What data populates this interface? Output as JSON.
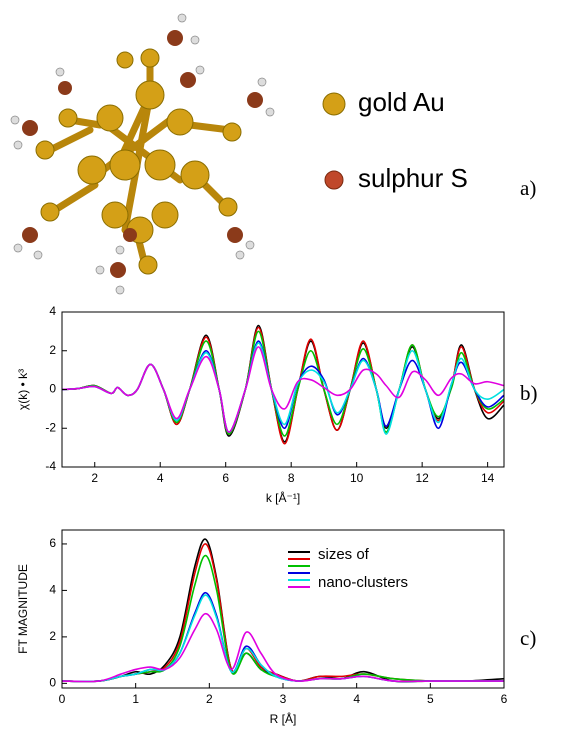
{
  "figure": {
    "panel_labels": [
      "a)",
      "b)",
      "c)"
    ],
    "molecule_legend": [
      "gold Au",
      "sulphur S"
    ]
  },
  "chart_data": [
    {
      "type": "line",
      "xlabel": "k [Å⁻¹]",
      "ylabel": "χ(k) • k³",
      "xlim": [
        1,
        14.5
      ],
      "ylim": [
        -4,
        4
      ],
      "xticks": [
        2,
        4,
        6,
        8,
        10,
        12,
        14
      ],
      "yticks": [
        -4,
        -2,
        0,
        2,
        4
      ],
      "x": [
        1,
        1.5,
        2,
        2.5,
        2.7,
        3,
        3.3,
        3.7,
        4.1,
        4.5,
        4.9,
        5.4,
        5.8,
        6.1,
        6.6,
        7.0,
        7.4,
        7.8,
        8.2,
        8.6,
        9.0,
        9.4,
        9.8,
        10.2,
        10.6,
        10.9,
        11.3,
        11.7,
        12.1,
        12.5,
        12.9,
        13.2,
        13.6,
        14.0,
        14.5
      ],
      "series": [
        {
          "color": "#000000",
          "values": [
            0,
            0.05,
            0.2,
            -0.2,
            0.1,
            -0.3,
            0,
            1.3,
            0,
            -1.8,
            0,
            2.8,
            0,
            -2.4,
            0,
            3.3,
            0,
            -2.7,
            0,
            2.5,
            0,
            -2.1,
            0,
            2.4,
            0,
            -2.0,
            0,
            2.2,
            0,
            -1.5,
            0.2,
            2.3,
            0,
            -1.5,
            -0.8
          ]
        },
        {
          "color": "#e00000",
          "values": [
            0,
            0.05,
            0.2,
            -0.2,
            0.1,
            -0.3,
            0,
            1.3,
            0,
            -1.8,
            0,
            2.7,
            0,
            -2.3,
            0,
            3.2,
            0,
            -2.8,
            0,
            2.6,
            0,
            -2.1,
            0,
            2.5,
            0,
            -1.9,
            0,
            2.3,
            0,
            -1.6,
            0.2,
            2.2,
            0,
            -1.2,
            -0.6
          ]
        },
        {
          "color": "#00c000",
          "values": [
            0,
            0.05,
            0.2,
            -0.2,
            0.1,
            -0.3,
            0,
            1.3,
            0,
            -1.7,
            0,
            2.5,
            0,
            -2.3,
            0,
            3.0,
            0,
            -2.4,
            0,
            2.0,
            0,
            -1.8,
            0,
            2.1,
            0,
            -2.2,
            0,
            2.3,
            0,
            -1.4,
            0.1,
            1.9,
            0,
            -1.0,
            -0.5
          ]
        },
        {
          "color": "#0000e0",
          "values": [
            0,
            0.05,
            0.15,
            -0.2,
            0.1,
            -0.3,
            0,
            1.3,
            0,
            -1.6,
            0,
            2.0,
            0,
            -2.2,
            0,
            2.5,
            0,
            -2.0,
            0.3,
            1.2,
            0.5,
            -1.3,
            0,
            1.6,
            0,
            -1.9,
            0,
            1.5,
            0,
            -2.0,
            0.3,
            1.4,
            0,
            -0.9,
            -0.3
          ]
        },
        {
          "color": "#00e0e0",
          "values": [
            0,
            0.05,
            0.15,
            -0.2,
            0.1,
            -0.3,
            0,
            1.3,
            0,
            -1.6,
            0,
            1.9,
            0,
            -2.2,
            0,
            2.4,
            0,
            -1.8,
            0.3,
            1.0,
            0.4,
            -1.2,
            0,
            1.5,
            0,
            -2.3,
            0,
            2.0,
            0,
            -1.7,
            0.3,
            1.6,
            0,
            -0.5,
            0
          ]
        },
        {
          "color": "#e000e0",
          "values": [
            0,
            0.05,
            0.15,
            -0.2,
            0.1,
            -0.3,
            0,
            1.3,
            0,
            -1.5,
            0,
            1.7,
            0,
            -2.2,
            0,
            2.2,
            0,
            -1.0,
            0.4,
            0.5,
            0.1,
            -0.3,
            0,
            1.0,
            0.8,
            0.2,
            -0.4,
            0.9,
            0.5,
            -0.3,
            0.6,
            0.8,
            0.3,
            0.4,
            0.2
          ]
        }
      ]
    },
    {
      "type": "line",
      "xlabel": "R [Å]",
      "ylabel": "FT MAGNITUDE",
      "xlim": [
        0,
        6
      ],
      "ylim": [
        -0.2,
        6.6
      ],
      "xticks": [
        0,
        1,
        2,
        3,
        4,
        5,
        6
      ],
      "yticks": [
        0,
        2,
        4,
        6
      ],
      "legend_labels": [
        "sizes of",
        "nano-clusters"
      ],
      "x": [
        0,
        0.5,
        0.8,
        1.0,
        1.2,
        1.4,
        1.6,
        1.8,
        1.95,
        2.1,
        2.3,
        2.5,
        2.7,
        2.9,
        3.2,
        3.5,
        3.8,
        4.1,
        4.5,
        5,
        5.5,
        6
      ],
      "series": [
        {
          "color": "#000000",
          "values": [
            0.1,
            0.1,
            0.3,
            0.5,
            0.4,
            0.8,
            2.0,
            5.0,
            6.2,
            4.5,
            0.6,
            1.3,
            0.6,
            0.4,
            0.1,
            0.3,
            0.2,
            0.5,
            0.1,
            0.1,
            0.1,
            0.2
          ]
        },
        {
          "color": "#e00000",
          "values": [
            0.1,
            0.1,
            0.3,
            0.4,
            0.5,
            0.7,
            1.8,
            4.7,
            6.0,
            4.4,
            0.6,
            1.5,
            0.7,
            0.4,
            0.1,
            0.3,
            0.3,
            0.4,
            0.2,
            0.1,
            0.1,
            0.1
          ]
        },
        {
          "color": "#00c000",
          "values": [
            0.1,
            0.1,
            0.3,
            0.4,
            0.5,
            0.6,
            1.6,
            4.2,
            5.5,
            4.0,
            0.5,
            1.3,
            0.6,
            0.3,
            0.1,
            0.2,
            0.2,
            0.4,
            0.2,
            0.1,
            0.1,
            0.1
          ]
        },
        {
          "color": "#0000e0",
          "values": [
            0.1,
            0.1,
            0.3,
            0.4,
            0.6,
            0.6,
            1.3,
            3.0,
            3.9,
            2.9,
            0.5,
            1.6,
            0.8,
            0.3,
            0.1,
            0.2,
            0.2,
            0.3,
            0.1,
            0.1,
            0.1,
            0.1
          ]
        },
        {
          "color": "#00e0e0",
          "values": [
            0.1,
            0.1,
            0.3,
            0.4,
            0.6,
            0.6,
            1.3,
            2.9,
            3.8,
            2.8,
            0.5,
            1.5,
            0.8,
            0.3,
            0.1,
            0.2,
            0.2,
            0.3,
            0.1,
            0.1,
            0.1,
            0.1
          ]
        },
        {
          "color": "#e000e0",
          "values": [
            0.1,
            0.1,
            0.4,
            0.6,
            0.7,
            0.6,
            1.1,
            2.3,
            3.0,
            2.3,
            0.6,
            2.2,
            1.3,
            0.4,
            0.1,
            0.2,
            0.2,
            0.3,
            0.1,
            0.1,
            0.1,
            0.1
          ]
        }
      ]
    }
  ]
}
